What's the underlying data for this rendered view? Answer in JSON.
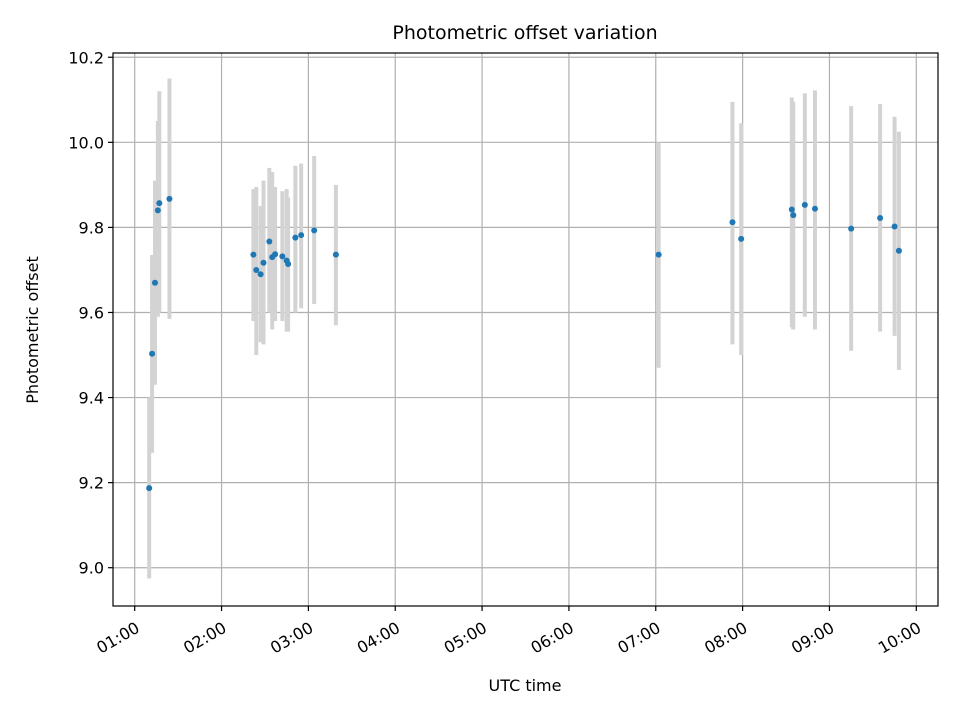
{
  "chart_data": {
    "type": "scatter",
    "title": "Photometric offset variation",
    "xlabel": "UTC time",
    "ylabel": "Photometric offset",
    "x_ticks": [
      "01:00",
      "02:00",
      "03:00",
      "04:00",
      "05:00",
      "06:00",
      "07:00",
      "08:00",
      "09:00",
      "10:00"
    ],
    "y_ticks": [
      "9.0",
      "9.2",
      "9.4",
      "9.6",
      "9.8",
      "10.0",
      "10.2"
    ],
    "xlim": [
      "00:45",
      "10:15"
    ],
    "ylim": [
      8.91,
      10.21
    ],
    "grid": true,
    "colors": {
      "point": "#1f77b4",
      "errorbar": "#d3d3d3",
      "grid": "#b0b0b0",
      "axes": "#000000"
    },
    "series": [
      {
        "points": [
          {
            "x": "01:10",
            "y": 9.187,
            "low": 8.975,
            "high": 9.4
          },
          {
            "x": "01:12",
            "y": 9.503,
            "low": 9.27,
            "high": 9.735
          },
          {
            "x": "01:14",
            "y": 9.67,
            "low": 9.43,
            "high": 9.91
          },
          {
            "x": "01:16",
            "y": 9.84,
            "low": 9.59,
            "high": 10.05
          },
          {
            "x": "01:17",
            "y": 9.857,
            "low": 9.6,
            "high": 10.12
          },
          {
            "x": "01:24",
            "y": 9.867,
            "low": 9.585,
            "high": 10.15
          },
          {
            "x": "02:22",
            "y": 9.736,
            "low": 9.58,
            "high": 9.89
          },
          {
            "x": "02:24",
            "y": 9.7,
            "low": 9.5,
            "high": 9.895
          },
          {
            "x": "02:27",
            "y": 9.69,
            "low": 9.53,
            "high": 9.85
          },
          {
            "x": "02:29",
            "y": 9.717,
            "low": 9.525,
            "high": 9.91
          },
          {
            "x": "02:33",
            "y": 9.767,
            "low": 9.6,
            "high": 9.94
          },
          {
            "x": "02:35",
            "y": 9.73,
            "low": 9.56,
            "high": 9.93
          },
          {
            "x": "02:37",
            "y": 9.737,
            "low": 9.58,
            "high": 9.895
          },
          {
            "x": "02:42",
            "y": 9.732,
            "low": 9.58,
            "high": 9.885
          },
          {
            "x": "02:45",
            "y": 9.722,
            "low": 9.555,
            "high": 9.89
          },
          {
            "x": "02:46",
            "y": 9.714,
            "low": 9.555,
            "high": 9.87
          },
          {
            "x": "02:51",
            "y": 9.776,
            "low": 9.6,
            "high": 9.945
          },
          {
            "x": "02:55",
            "y": 9.782,
            "low": 9.61,
            "high": 9.95
          },
          {
            "x": "03:04",
            "y": 9.793,
            "low": 9.62,
            "high": 9.968
          },
          {
            "x": "03:19",
            "y": 9.736,
            "low": 9.57,
            "high": 9.9
          },
          {
            "x": "07:02",
            "y": 9.736,
            "low": 9.47,
            "high": 10.0
          },
          {
            "x": "07:53",
            "y": 9.812,
            "low": 9.525,
            "high": 10.095
          },
          {
            "x": "07:59",
            "y": 9.773,
            "low": 9.5,
            "high": 10.045
          },
          {
            "x": "08:34",
            "y": 9.842,
            "low": 9.565,
            "high": 10.105
          },
          {
            "x": "08:35",
            "y": 9.829,
            "low": 9.56,
            "high": 10.095
          },
          {
            "x": "08:43",
            "y": 9.853,
            "low": 9.59,
            "high": 10.115
          },
          {
            "x": "08:50",
            "y": 9.844,
            "low": 9.56,
            "high": 10.122
          },
          {
            "x": "09:15",
            "y": 9.797,
            "low": 9.51,
            "high": 10.085
          },
          {
            "x": "09:35",
            "y": 9.822,
            "low": 9.555,
            "high": 10.09
          },
          {
            "x": "09:45",
            "y": 9.802,
            "low": 9.545,
            "high": 10.06
          },
          {
            "x": "09:48",
            "y": 9.745,
            "low": 9.465,
            "high": 10.025
          }
        ]
      }
    ]
  }
}
